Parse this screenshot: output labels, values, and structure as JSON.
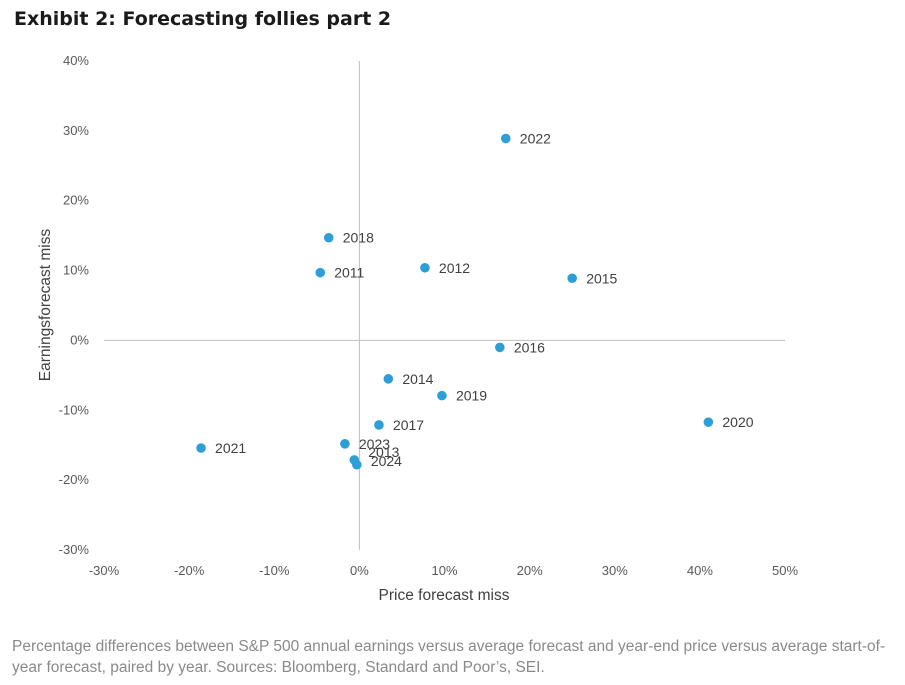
{
  "title": "Exhibit 2: Forecasting follies part 2",
  "caption": "Percentage differences between S&P 500 annual earnings versus average forecast and year-end price versus average start-of-year forecast, paired by year. Sources: Bloomberg, Standard and Poor’s, SEI.",
  "colors": {
    "point": "#2e9fd6",
    "axis": "#bfbfbf"
  },
  "chart_data": {
    "type": "scatter",
    "xlabel": "Price forecast miss",
    "ylabel": "Earningsforecast miss",
    "xlim": [
      -30,
      50
    ],
    "ylim": [
      -30,
      40
    ],
    "xticks": [
      -30,
      -20,
      -10,
      0,
      10,
      20,
      30,
      40,
      50
    ],
    "yticks": [
      -30,
      -20,
      -10,
      0,
      10,
      20,
      30,
      40
    ],
    "xtick_labels": [
      "-30%",
      "-20%",
      "-10%",
      "0%",
      "10%",
      "20%",
      "30%",
      "40%",
      "50%"
    ],
    "ytick_labels": [
      "-30%",
      "-20%",
      "-10%",
      "0%",
      "10%",
      "20%",
      "30%",
      "40%"
    ],
    "points": [
      {
        "label": "2022",
        "x": 17.2,
        "y": 28.9
      },
      {
        "label": "2018",
        "x": -3.6,
        "y": 14.7
      },
      {
        "label": "2011",
        "x": -4.6,
        "y": 9.7
      },
      {
        "label": "2012",
        "x": 7.7,
        "y": 10.4
      },
      {
        "label": "2015",
        "x": 25.0,
        "y": 8.9
      },
      {
        "label": "2016",
        "x": 16.5,
        "y": -1.0
      },
      {
        "label": "2014",
        "x": 3.4,
        "y": -5.5
      },
      {
        "label": "2019",
        "x": 9.7,
        "y": -7.9
      },
      {
        "label": "2020",
        "x": 41.0,
        "y": -11.7
      },
      {
        "label": "2017",
        "x": 2.3,
        "y": -12.1
      },
      {
        "label": "2021",
        "x": -18.6,
        "y": -15.4
      },
      {
        "label": "2023",
        "x": -1.7,
        "y": -14.8
      },
      {
        "label": "2013",
        "x": -0.6,
        "y": -17.1
      },
      {
        "label": "2024",
        "x": -0.3,
        "y": -17.8
      }
    ]
  }
}
